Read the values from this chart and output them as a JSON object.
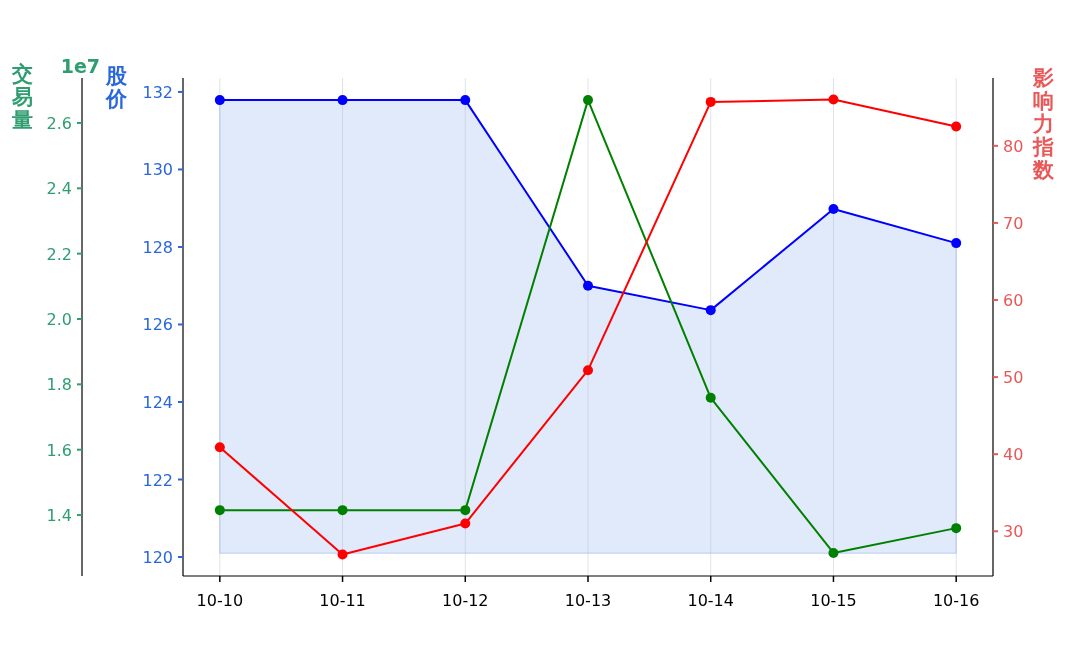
{
  "chart_data": {
    "type": "line",
    "categories": [
      "10-10",
      "10-11",
      "10-12",
      "10-13",
      "10-14",
      "10-15",
      "10-16"
    ],
    "ylabel": "股价",
    "y2label": "影响力指数",
    "y3label": "交易量",
    "annotations": [
      "1e7"
    ],
    "ylim": [
      119.51,
      132.36
    ],
    "yticks": [
      120,
      122,
      124,
      126,
      128,
      130,
      132
    ],
    "y2lim": [
      24.2,
      88.8
    ],
    "y2ticks": [
      30,
      40,
      50,
      60,
      70,
      80
    ],
    "y3lim": [
      1.2135,
      2.7376
    ],
    "y3ticks": [
      {
        "value": 1.4,
        "label": "1.4"
      },
      {
        "value": 1.6,
        "label": "1.6"
      },
      {
        "value": 1.8,
        "label": "1.8"
      },
      {
        "value": 2.0,
        "label": "2.0"
      },
      {
        "value": 2.2,
        "label": "2.2"
      },
      {
        "value": 2.4,
        "label": "2.4"
      },
      {
        "value": 2.6,
        "label": "2.6"
      }
    ],
    "grid": "x",
    "marker": "circle",
    "line_style": "solid",
    "series": [
      {
        "color": "#0000ff",
        "values": [
          131.79,
          131.79,
          131.79,
          127.0,
          126.37,
          128.98,
          128.1
        ],
        "lower": [
          120.1,
          120.1,
          120.1,
          120.1,
          120.1,
          120.1,
          120.1
        ],
        "upper": [
          131.79,
          131.79,
          131.79,
          127.0,
          126.37,
          128.98,
          128.1
        ]
      },
      {
        "color": "#008000",
        "axis": "y3",
        "values": [
          1.415,
          1.415,
          1.415,
          2.67,
          1.759,
          1.284,
          1.36
        ]
      },
      {
        "color": "#ff0000",
        "axis": "y2",
        "values": [
          40.9,
          27.0,
          31.0,
          50.9,
          85.7,
          86.0,
          82.5
        ]
      }
    ]
  }
}
